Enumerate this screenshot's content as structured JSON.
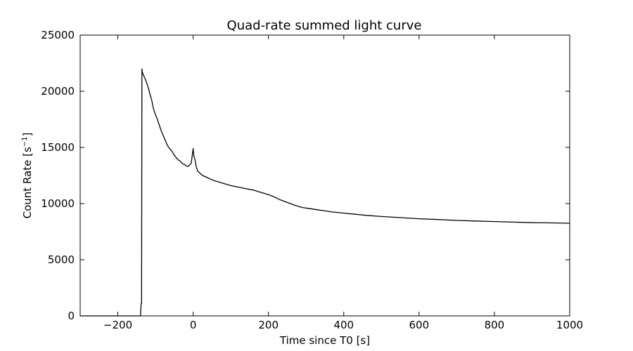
{
  "chart_data": {
    "type": "line",
    "title": "Quad-rate summed light curve",
    "xlabel": "Time since T0 [s]",
    "ylabel": "Count Rate [s",
    "ylabel_sup": "−1",
    "ylabel_suffix": "]",
    "xlim": [
      -300,
      1000
    ],
    "ylim": [
      0,
      25000
    ],
    "xticks": [
      -200,
      0,
      200,
      400,
      600,
      800,
      1000
    ],
    "xtick_labels": [
      "−200",
      "0",
      "200",
      "400",
      "600",
      "800",
      "1000"
    ],
    "yticks": [
      0,
      5000,
      10000,
      15000,
      20000,
      25000
    ],
    "ytick_labels": [
      "0",
      "5000",
      "10000",
      "15000",
      "20000",
      "25000"
    ],
    "grid": false,
    "line_color": "#000000",
    "series": [
      {
        "x": [
          -300,
          -140,
          -138,
          -137,
          -136,
          -135,
          -130,
          -125,
          -120,
          -115,
          -110,
          -105,
          -100,
          -95,
          -90,
          -85,
          -80,
          -75,
          -70,
          -65,
          -60,
          -55,
          -50,
          -45,
          -40,
          -35,
          -30,
          -25,
          -20,
          -15,
          -10,
          -5,
          0,
          2,
          5,
          8,
          12,
          18,
          25,
          35,
          45,
          55,
          65,
          75,
          85,
          100,
          115,
          130,
          145,
          160,
          175,
          190,
          200,
          215,
          230,
          250,
          270,
          290,
          310,
          330,
          350,
          370,
          400,
          430,
          460,
          500,
          550,
          600,
          650,
          700,
          750,
          800,
          850,
          900,
          950,
          1000
        ],
        "y": [
          0,
          0,
          1100,
          1100,
          22000,
          21700,
          21300,
          20900,
          20400,
          19800,
          19200,
          18400,
          17900,
          17500,
          17000,
          16500,
          16100,
          15700,
          15300,
          15000,
          14800,
          14600,
          14300,
          14100,
          13900,
          13800,
          13600,
          13500,
          13400,
          13300,
          13400,
          13600,
          14900,
          14200,
          13900,
          13300,
          12900,
          12700,
          12500,
          12350,
          12200,
          12050,
          11950,
          11850,
          11750,
          11600,
          11500,
          11400,
          11300,
          11200,
          11050,
          10900,
          10800,
          10600,
          10350,
          10100,
          9850,
          9650,
          9550,
          9450,
          9350,
          9250,
          9150,
          9050,
          8950,
          8850,
          8750,
          8650,
          8580,
          8500,
          8450,
          8400,
          8350,
          8300,
          8280,
          8250
        ]
      }
    ]
  }
}
